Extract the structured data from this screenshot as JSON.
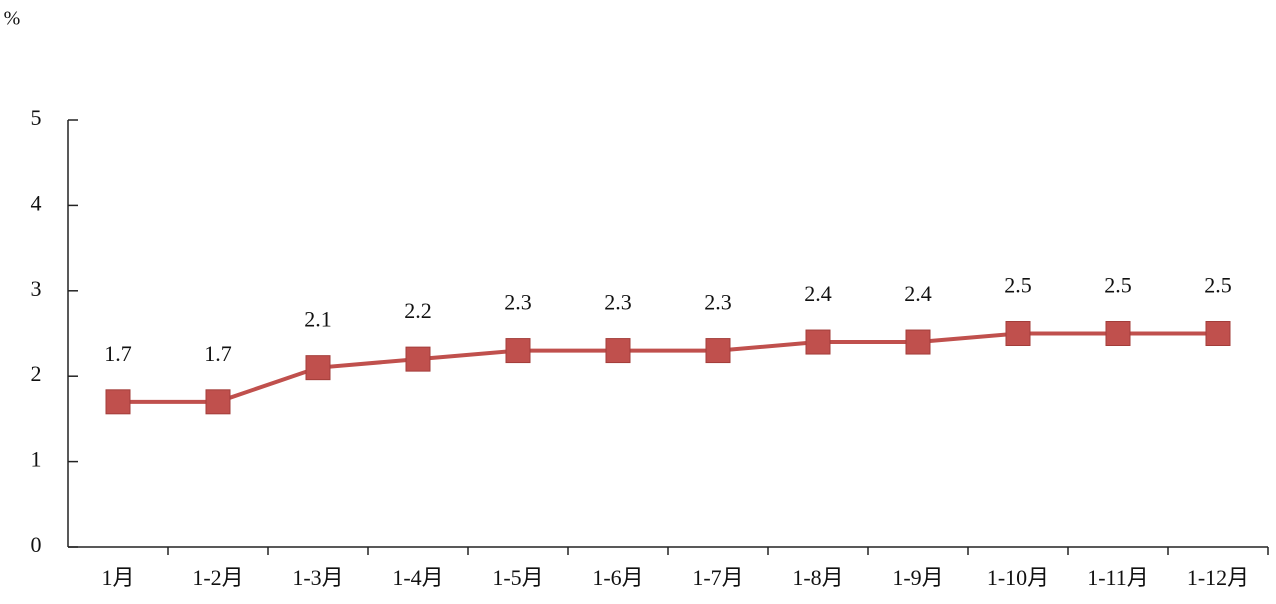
{
  "chart_data": {
    "type": "line",
    "ylabel": "%",
    "categories": [
      "1月",
      "1-2月",
      "1-3月",
      "1-4月",
      "1-5月",
      "1-6月",
      "1-7月",
      "1-8月",
      "1-9月",
      "1-10月",
      "1-11月",
      "1-12月"
    ],
    "values": [
      1.7,
      1.7,
      2.1,
      2.2,
      2.3,
      2.3,
      2.3,
      2.4,
      2.4,
      2.5,
      2.5,
      2.5
    ],
    "color": "#c0504d",
    "ylim": [
      0,
      5
    ],
    "yticks": [
      0,
      1,
      2,
      3,
      4,
      5
    ],
    "grid": false
  }
}
